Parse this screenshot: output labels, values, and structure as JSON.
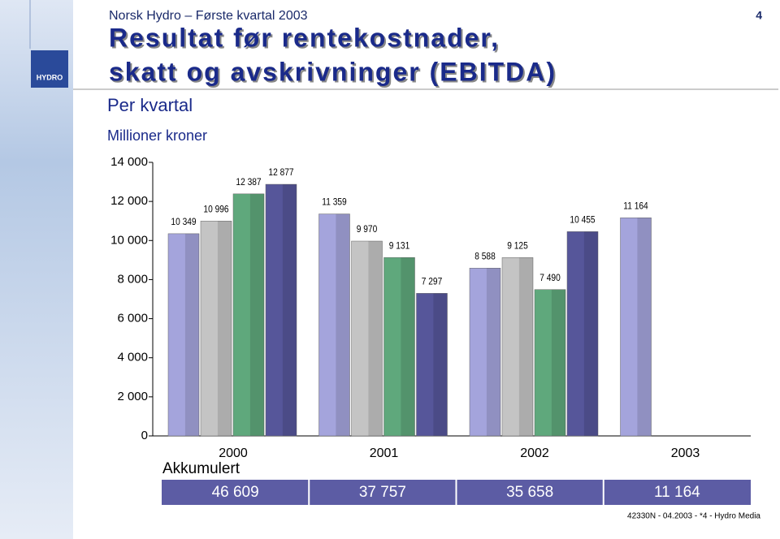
{
  "header": {
    "company": "Norsk Hydro – Første kvartal 2003",
    "page": "4",
    "logo": "HYDRO"
  },
  "title": {
    "line1": "Resultat før rentekostnader,",
    "line2": "skatt og avskrivninger (EBITDA)"
  },
  "subtitle": "Per kvartal",
  "unit": "Millioner kroner",
  "chart_data": {
    "type": "bar",
    "categories": [
      "2000",
      "2001",
      "2002",
      "2003"
    ],
    "series": [
      {
        "color": "#a4a4dc",
        "values": [
          10349,
          11359,
          8588,
          11164
        ],
        "value_labels": [
          "10 349",
          "11 359",
          "8 588",
          "11 164"
        ]
      },
      {
        "color": "#c4c4c4",
        "values": [
          10996,
          9970,
          9125,
          null
        ],
        "value_labels": [
          "10 996",
          "9 970",
          "9 125",
          null
        ]
      },
      {
        "color": "#5fa87c",
        "values": [
          12387,
          9131,
          7490,
          null
        ],
        "value_labels": [
          "12 387",
          "9 131",
          "7 490",
          null
        ]
      },
      {
        "color": "#56569a",
        "values": [
          12877,
          7297,
          10455,
          null
        ],
        "value_labels": [
          "12 877",
          "7 297",
          "10 455",
          null
        ]
      }
    ],
    "ylim": [
      0,
      14000
    ],
    "yticks": [
      0,
      {
        "value": 2000,
        "label": "2 000"
      },
      {
        "value": 4000,
        "label": "4 000"
      },
      {
        "value": 6000,
        "label": "6 000"
      },
      {
        "value": 8000,
        "label": "8 000"
      },
      {
        "value": 10000,
        "label": "10 000"
      },
      {
        "value": 12000,
        "label": "12 000"
      },
      {
        "value": 14000,
        "label": "14 000"
      }
    ]
  },
  "cumulative": {
    "label": "Akkumulert",
    "cells": [
      "46 609",
      "37 757",
      "35 658",
      "11 164"
    ]
  },
  "footer": "42330N - 04.2003 - *4 - Hydro Media"
}
